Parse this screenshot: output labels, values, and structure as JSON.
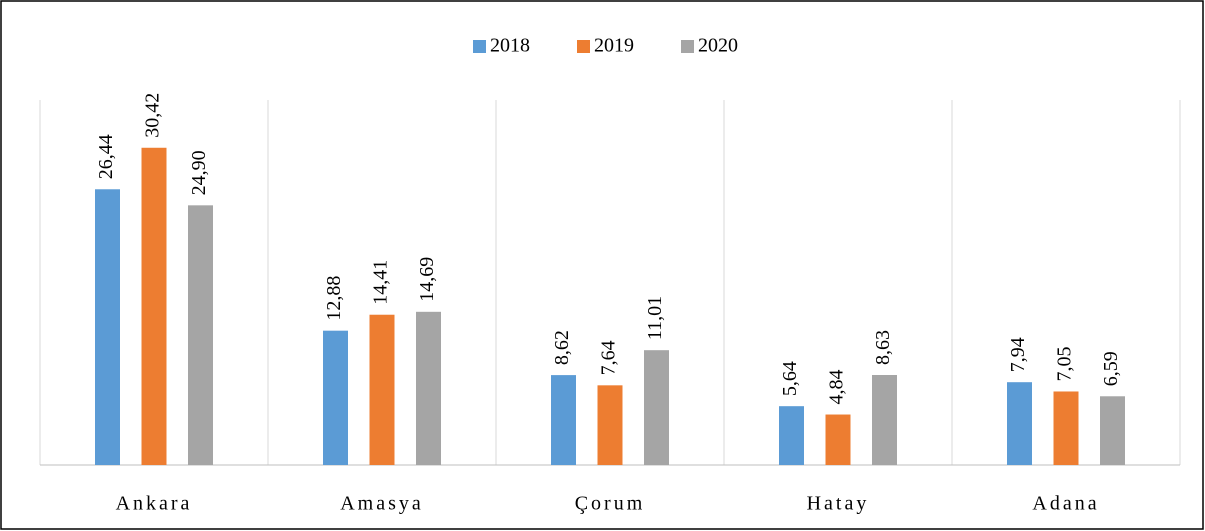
{
  "chart_data": {
    "type": "bar",
    "categories": [
      "Ankara",
      "Amasya",
      "Çorum",
      "Hatay",
      "Adana"
    ],
    "series": [
      {
        "name": "2018",
        "color": "#5b9bd5",
        "values": [
          26.44,
          12.88,
          8.62,
          5.64,
          7.94
        ],
        "value_labels": [
          "26,44",
          "12,88",
          "8,62",
          "5,64",
          "7,94"
        ]
      },
      {
        "name": "2019",
        "color": "#ed7d31",
        "values": [
          30.42,
          14.41,
          7.64,
          4.84,
          7.05
        ],
        "value_labels": [
          "30,42",
          "14,41",
          "7,64",
          "4,84",
          "7,05"
        ]
      },
      {
        "name": "2020",
        "color": "#a5a5a5",
        "values": [
          24.9,
          14.69,
          11.01,
          8.63,
          6.59
        ],
        "value_labels": [
          "24,90",
          "14,69",
          "11,01",
          "8,63",
          "6,59"
        ]
      }
    ],
    "ylim": [
      0,
      35
    ],
    "legend": "top"
  }
}
